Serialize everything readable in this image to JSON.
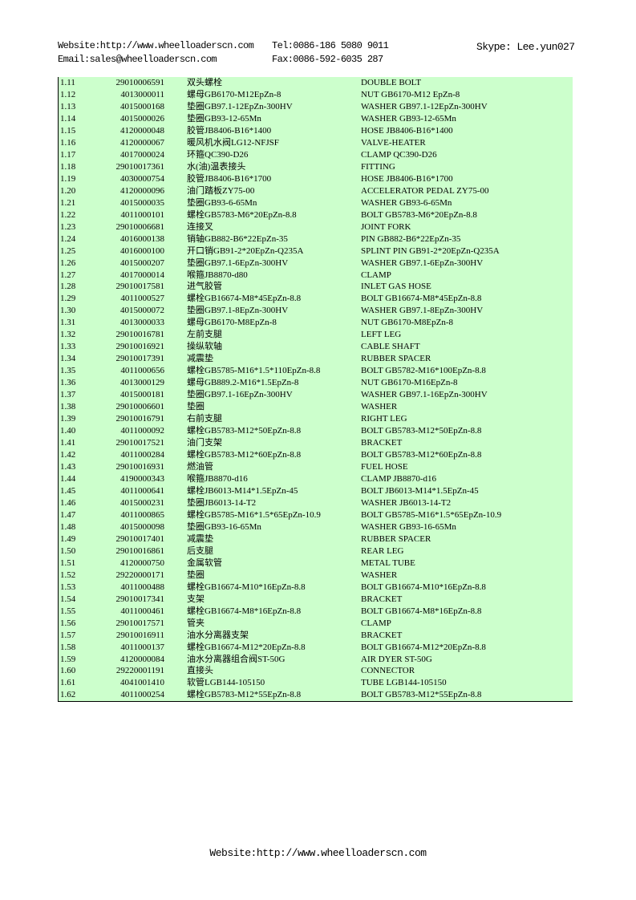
{
  "header": {
    "website": "Website:http://www.wheelloaderscn.com",
    "tel": "Tel:0086-186 5080 9011",
    "skype": "Skype: Lee.yun027",
    "email": "Email:sales@wheelloaderscn.com",
    "fax": "Fax:0086-592-6035 287"
  },
  "table": {
    "rows": [
      [
        "1.11",
        "29010006591",
        "双头螺栓",
        "DOUBLE BOLT"
      ],
      [
        "1.12",
        "4013000011",
        "螺母GB6170-M12EpZn-8",
        "NUT GB6170-M12 EpZn-8"
      ],
      [
        "1.13",
        "4015000168",
        "垫圈GB97.1-12EpZn-300HV",
        "WASHER GB97.1-12EpZn-300HV"
      ],
      [
        "1.14",
        "4015000026",
        "垫圈GB93-12-65Mn",
        "WASHER GB93-12-65Mn"
      ],
      [
        "1.15",
        "4120000048",
        "胶管JB8406-B16*1400",
        "HOSE JB8406-B16*1400"
      ],
      [
        "1.16",
        "4120000067",
        "暖风机水阀LG12-NFJSF",
        "VALVE-HEATER"
      ],
      [
        "1.17",
        "4017000024",
        "环箍QC390-D26",
        "CLAMP QC390-D26"
      ],
      [
        "1.18",
        "29010017361",
        "水(油)温表接头",
        "FITTING"
      ],
      [
        "1.19",
        "4030000754",
        "胶管JB8406-B16*1700",
        "HOSE JB8406-B16*1700"
      ],
      [
        "1.20",
        "4120000096",
        "油门踏板ZY75-00",
        "ACCELERATOR PEDAL ZY75-00"
      ],
      [
        "1.21",
        "4015000035",
        "垫圈GB93-6-65Mn",
        "WASHER GB93-6-65Mn"
      ],
      [
        "1.22",
        "4011000101",
        "螺栓GB5783-M6*20EpZn-8.8",
        "BOLT GB5783-M6*20EpZn-8.8"
      ],
      [
        "1.23",
        "29010006681",
        "连接叉",
        "JOINT FORK"
      ],
      [
        "1.24",
        "4016000138",
        "销轴GB882-B6*22EpZn-35",
        "PIN GB882-B6*22EpZn-35"
      ],
      [
        "1.25",
        "4016000100",
        "开口销GB91-2*20EpZn-Q235A",
        "SPLINT PIN GB91-2*20EpZn-Q235A"
      ],
      [
        "1.26",
        "4015000207",
        "垫圈GB97.1-6EpZn-300HV",
        "WASHER GB97.1-6EpZn-300HV"
      ],
      [
        "1.27",
        "4017000014",
        "喉箍JB8870-d80",
        "CLAMP"
      ],
      [
        "1.28",
        "29010017581",
        "进气胶管",
        "INLET GAS HOSE"
      ],
      [
        "1.29",
        "4011000527",
        "螺栓GB16674-M8*45EpZn-8.8",
        "BOLT GB16674-M8*45EpZn-8.8"
      ],
      [
        "1.30",
        "4015000072",
        "垫圈GB97.1-8EpZn-300HV",
        "WASHER GB97.1-8EpZn-300HV"
      ],
      [
        "1.31",
        "4013000033",
        "螺母GB6170-M8EpZn-8",
        "NUT GB6170-M8EpZn-8"
      ],
      [
        "1.32",
        "29010016781",
        "左前支腿",
        "LEFT LEG"
      ],
      [
        "1.33",
        "29010016921",
        "操纵软轴",
        "CABLE SHAFT"
      ],
      [
        "1.34",
        "29010017391",
        "减震垫",
        "RUBBER SPACER"
      ],
      [
        "1.35",
        "4011000656",
        "螺栓GB5785-M16*1.5*110EpZn-8.8",
        "BOLT GB5782-M16*100EpZn-8.8"
      ],
      [
        "1.36",
        "4013000129",
        "螺母GB889.2-M16*1.5EpZn-8",
        "NUT GB6170-M16EpZn-8"
      ],
      [
        "1.37",
        "4015000181",
        "垫圈GB97.1-16EpZn-300HV",
        "WASHER GB97.1-16EpZn-300HV"
      ],
      [
        "1.38",
        "29010006601",
        "垫圈",
        "WASHER"
      ],
      [
        "1.39",
        "29010016791",
        "右前支腿",
        "RIGHT LEG"
      ],
      [
        "1.40",
        "4011000092",
        "螺栓GB5783-M12*50EpZn-8.8",
        "BOLT GB5783-M12*50EpZn-8.8"
      ],
      [
        "1.41",
        "29010017521",
        "油门支架",
        "BRACKET"
      ],
      [
        "1.42",
        "4011000284",
        "螺栓GB5783-M12*60EpZn-8.8",
        "BOLT GB5783-M12*60EpZn-8.8"
      ],
      [
        "1.43",
        "29010016931",
        "燃油管",
        "FUEL HOSE"
      ],
      [
        "1.44",
        "4190000343",
        "喉箍JB8870-d16",
        "CLAMP JB8870-d16"
      ],
      [
        "1.45",
        "4011000641",
        "螺栓JB6013-M14*1.5EpZn-45",
        "BOLT JB6013-M14*1.5EpZn-45"
      ],
      [
        "1.46",
        "4015000231",
        "垫圈JB6013-14-T2",
        "WASHER JB6013-14-T2"
      ],
      [
        "1.47",
        "4011000865",
        "螺栓GB5785-M16*1.5*65EpZn-10.9",
        "BOLT GB5785-M16*1.5*65EpZn-10.9"
      ],
      [
        "1.48",
        "4015000098",
        "垫圈GB93-16-65Mn",
        "WASHER GB93-16-65Mn"
      ],
      [
        "1.49",
        "29010017401",
        "减震垫",
        "RUBBER SPACER"
      ],
      [
        "1.50",
        "29010016861",
        "后支腿",
        "REAR LEG"
      ],
      [
        "1.51",
        "4120000750",
        "金属软管",
        "METAL TUBE"
      ],
      [
        "1.52",
        "29220000171",
        "垫圈",
        "WASHER"
      ],
      [
        "1.53",
        "4011000488",
        "螺栓GB16674-M10*16EpZn-8.8",
        "BOLT GB16674-M10*16EpZn-8.8"
      ],
      [
        "1.54",
        "29010017341",
        "支架",
        "BRACKET"
      ],
      [
        "1.55",
        "4011000461",
        "螺栓GB16674-M8*16EpZn-8.8",
        "BOLT GB16674-M8*16EpZn-8.8"
      ],
      [
        "1.56",
        "29010017571",
        "管夹",
        "CLAMP"
      ],
      [
        "1.57",
        "29010016911",
        "油水分离器支架",
        "BRACKET"
      ],
      [
        "1.58",
        "4011000137",
        "螺栓GB16674-M12*20EpZn-8.8",
        "BOLT GB16674-M12*20EpZn-8.8"
      ],
      [
        "1.59",
        "4120000084",
        "油水分离器组合阀ST-50G",
        "AIR DYER ST-50G"
      ],
      [
        "1.60",
        "29220001191",
        "直接头",
        "CONNECTOR"
      ],
      [
        "1.61",
        "4041001410",
        "软管LGB144-105150",
        "TUBE LGB144-105150"
      ],
      [
        "1.62",
        "4011000254",
        "螺栓GB5783-M12*55EpZn-8.8",
        "BOLT GB5783-M12*55EpZn-8.8"
      ]
    ]
  },
  "footer": {
    "website": "Website:http://www.wheelloaderscn.com"
  },
  "colors": {
    "table_bg": "#ccffcc"
  }
}
